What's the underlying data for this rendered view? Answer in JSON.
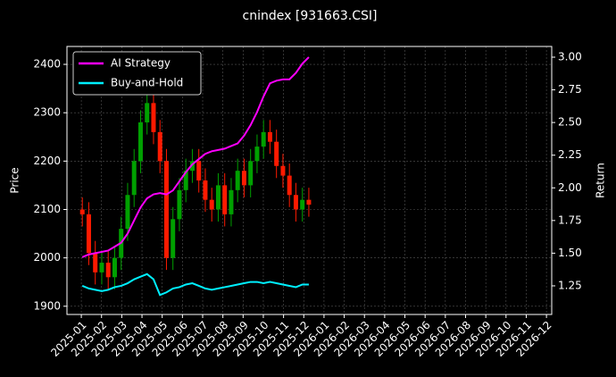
{
  "chart_data": {
    "type": "candlestick",
    "title": "cnindex [931663.CSI]",
    "ylabel": "Price",
    "y2label": "Return",
    "x": [
      0.05,
      0.37,
      0.69,
      1.01,
      1.33,
      1.65,
      1.97,
      2.29,
      2.61,
      2.93,
      3.25,
      3.57,
      3.89,
      4.21,
      4.53,
      4.85,
      5.17,
      5.49,
      5.81,
      6.13,
      6.45,
      6.77,
      7.09,
      7.41,
      7.73,
      8.05,
      8.37,
      8.69,
      9.01,
      9.33,
      9.65,
      9.97,
      10.29,
      10.61,
      10.93,
      11.25
    ],
    "ohlc": {
      "open": [
        2100,
        2090,
        2010,
        1970,
        1990,
        1960,
        2000,
        2060,
        2130,
        2200,
        2280,
        2320,
        2260,
        2200,
        2000,
        2080,
        2140,
        2180,
        2200,
        2160,
        2120,
        2100,
        2150,
        2090,
        2140,
        2180,
        2150,
        2200,
        2230,
        2260,
        2240,
        2190,
        2170,
        2130,
        2100,
        2120
      ],
      "high": [
        2125,
        2115,
        2035,
        2015,
        2015,
        2025,
        2085,
        2155,
        2225,
        2305,
        2345,
        2345,
        2285,
        2225,
        2105,
        2165,
        2205,
        2225,
        2225,
        2185,
        2145,
        2175,
        2175,
        2165,
        2205,
        2205,
        2225,
        2255,
        2285,
        2285,
        2265,
        2215,
        2195,
        2155,
        2145,
        2145
      ],
      "low": [
        2065,
        1985,
        1945,
        1945,
        1935,
        1935,
        1975,
        2035,
        2105,
        2175,
        2255,
        2235,
        2175,
        1975,
        1975,
        2055,
        2115,
        2155,
        2135,
        2095,
        2075,
        2075,
        2065,
        2065,
        2115,
        2125,
        2125,
        2175,
        2205,
        2215,
        2165,
        2145,
        2105,
        2075,
        2075,
        2085
      ],
      "close": [
        2090,
        2010,
        1970,
        1990,
        1960,
        2000,
        2060,
        2130,
        2200,
        2280,
        2320,
        2260,
        2200,
        2000,
        2080,
        2140,
        2180,
        2200,
        2160,
        2120,
        2100,
        2150,
        2090,
        2140,
        2180,
        2150,
        2200,
        2230,
        2260,
        2240,
        2190,
        2170,
        2130,
        2100,
        2120,
        2110
      ]
    },
    "up_color": "#00a000",
    "down_color": "#ff1a00",
    "series": [
      {
        "name": "AI Strategy",
        "color": "#ff00ff",
        "axis": "y2",
        "values": [
          1.47,
          1.49,
          1.5,
          1.51,
          1.52,
          1.55,
          1.58,
          1.65,
          1.75,
          1.85,
          1.92,
          1.95,
          1.96,
          1.95,
          1.98,
          2.05,
          2.12,
          2.18,
          2.22,
          2.26,
          2.28,
          2.29,
          2.3,
          2.32,
          2.34,
          2.4,
          2.48,
          2.58,
          2.7,
          2.8,
          2.82,
          2.83,
          2.83,
          2.88,
          2.95,
          3.0
        ]
      },
      {
        "name": "Buy-and-Hold",
        "color": "#00f0ff",
        "axis": "y2",
        "values": [
          1.25,
          1.23,
          1.22,
          1.21,
          1.22,
          1.24,
          1.25,
          1.27,
          1.3,
          1.32,
          1.34,
          1.3,
          1.18,
          1.2,
          1.23,
          1.24,
          1.26,
          1.27,
          1.25,
          1.23,
          1.22,
          1.23,
          1.24,
          1.25,
          1.26,
          1.27,
          1.28,
          1.28,
          1.27,
          1.28,
          1.27,
          1.26,
          1.25,
          1.24,
          1.26,
          1.26
        ]
      }
    ],
    "xlim": [
      -0.71,
      23.26
    ],
    "xticks": [
      {
        "value": 0,
        "label": "2025-01"
      },
      {
        "value": 1,
        "label": "2025-02"
      },
      {
        "value": 2,
        "label": "2025-03"
      },
      {
        "value": 3,
        "label": "2025-04"
      },
      {
        "value": 4,
        "label": "2025-05"
      },
      {
        "value": 5,
        "label": "2025-06"
      },
      {
        "value": 6,
        "label": "2025-07"
      },
      {
        "value": 7,
        "label": "2025-08"
      },
      {
        "value": 8,
        "label": "2025-09"
      },
      {
        "value": 9,
        "label": "2025-10"
      },
      {
        "value": 10,
        "label": "2025-11"
      },
      {
        "value": 11,
        "label": "2025-12"
      },
      {
        "value": 12,
        "label": "2026-01"
      },
      {
        "value": 13,
        "label": "2026-02"
      },
      {
        "value": 14,
        "label": "2026-03"
      },
      {
        "value": 15,
        "label": "2026-04"
      },
      {
        "value": 16,
        "label": "2026-05"
      },
      {
        "value": 17,
        "label": "2026-06"
      },
      {
        "value": 18,
        "label": "2026-07"
      },
      {
        "value": 19,
        "label": "2026-08"
      },
      {
        "value": 20,
        "label": "2026-09"
      },
      {
        "value": 21,
        "label": "2026-10"
      },
      {
        "value": 22,
        "label": "2026-11"
      },
      {
        "value": 23,
        "label": "2026-12"
      }
    ],
    "ylim": [
      1883,
      2437
    ],
    "yticks": [
      1900,
      2000,
      2100,
      2200,
      2300,
      2400
    ],
    "y2lim": [
      1.031,
      3.082
    ],
    "y2ticks": [
      1.25,
      {
        "value": 1.5,
        "label": "1.50"
      },
      1.75,
      {
        "value": 2.0,
        "label": "2.00"
      },
      2.25,
      {
        "value": 2.5,
        "label": "2.50"
      },
      2.75,
      {
        "value": 3.0,
        "label": "3.00"
      }
    ],
    "grid": true,
    "legend": "upper left"
  }
}
